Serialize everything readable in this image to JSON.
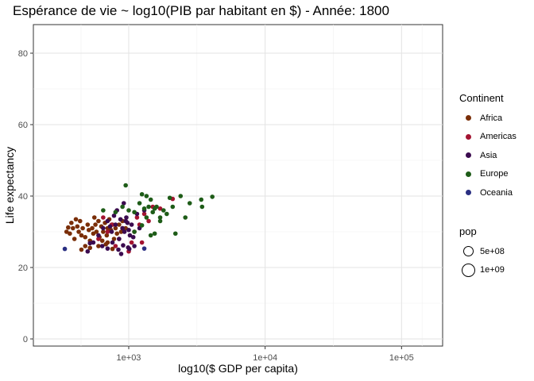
{
  "chart_data": {
    "type": "scatter",
    "title": "Espérance de vie ~ log10(PIB par habitant en $) - Année: 1800",
    "xlabel": "log10($ GDP per capita)",
    "ylabel": "Life expectancy",
    "x_scale": "log10",
    "xlim": [
      200,
      200000
    ],
    "ylim": [
      -2,
      88
    ],
    "x_ticks": [
      {
        "value": 1000,
        "label": "1e+03"
      },
      {
        "value": 10000,
        "label": "1e+04"
      },
      {
        "value": 100000,
        "label": "1e+05"
      }
    ],
    "y_ticks": [
      {
        "value": 0,
        "label": "0"
      },
      {
        "value": 20,
        "label": "20"
      },
      {
        "value": 40,
        "label": "40"
      },
      {
        "value": 60,
        "label": "60"
      },
      {
        "value": 80,
        "label": "80"
      }
    ],
    "grid": true,
    "legend": {
      "placement": "right",
      "color_title": "Continent",
      "size_title": "pop",
      "size_entries": [
        "5e+08",
        "1e+09"
      ]
    },
    "series": [
      {
        "name": "Africa",
        "color": "#7a2e08",
        "points": [
          [
            350,
            30
          ],
          [
            370,
            29.5
          ],
          [
            390,
            31
          ],
          [
            400,
            28
          ],
          [
            420,
            31.5
          ],
          [
            430,
            30
          ],
          [
            440,
            33
          ],
          [
            450,
            29
          ],
          [
            460,
            31
          ],
          [
            480,
            28.5
          ],
          [
            500,
            32
          ],
          [
            510,
            30.5
          ],
          [
            520,
            27.5
          ],
          [
            540,
            31
          ],
          [
            550,
            29.5
          ],
          [
            570,
            32
          ],
          [
            580,
            30
          ],
          [
            600,
            33
          ],
          [
            610,
            28.5
          ],
          [
            630,
            31.5
          ],
          [
            650,
            30
          ],
          [
            670,
            32.5
          ],
          [
            690,
            29
          ],
          [
            700,
            31
          ],
          [
            720,
            33.5
          ],
          [
            740,
            30.5
          ],
          [
            760,
            32
          ],
          [
            780,
            28
          ],
          [
            800,
            31
          ],
          [
            820,
            29.5
          ],
          [
            850,
            32
          ],
          [
            880,
            30
          ],
          [
            450,
            25
          ],
          [
            480,
            26
          ],
          [
            520,
            25.5
          ],
          [
            600,
            26
          ],
          [
            700,
            27
          ],
          [
            760,
            25.2
          ],
          [
            560,
            34
          ],
          [
            640,
            27.5
          ],
          [
            380,
            32.5
          ],
          [
            410,
            33.5
          ],
          [
            360,
            31.2
          ],
          [
            900,
            33
          ],
          [
            950,
            31
          ],
          [
            680,
            26.5
          ]
        ]
      },
      {
        "name": "Americas",
        "color": "#a31431",
        "points": [
          [
            650,
            34
          ],
          [
            700,
            30
          ],
          [
            750,
            32
          ],
          [
            800,
            26
          ],
          [
            850,
            28
          ],
          [
            900,
            31
          ],
          [
            950,
            33
          ],
          [
            1000,
            24.5
          ],
          [
            1050,
            27
          ],
          [
            1100,
            30
          ],
          [
            1150,
            34
          ],
          [
            1200,
            32
          ],
          [
            1300,
            35
          ],
          [
            1400,
            33
          ],
          [
            1500,
            37
          ],
          [
            1700,
            36.5
          ],
          [
            2100,
            39.2
          ],
          [
            600,
            28
          ],
          [
            1250,
            27
          ]
        ]
      },
      {
        "name": "Asia",
        "color": "#3b0b4f",
        "points": [
          [
            500,
            24.5
          ],
          [
            550,
            27
          ],
          [
            600,
            29
          ],
          [
            650,
            31
          ],
          [
            700,
            33
          ],
          [
            750,
            30
          ],
          [
            800,
            32
          ],
          [
            850,
            28
          ],
          [
            900,
            31
          ],
          [
            950,
            33
          ],
          [
            1000,
            30.5
          ],
          [
            1020,
            29
          ],
          [
            1050,
            32
          ],
          [
            1080,
            28.5
          ],
          [
            980,
            32.5
          ],
          [
            930,
            30
          ],
          [
            1100,
            26
          ],
          [
            1150,
            35
          ],
          [
            1200,
            31
          ],
          [
            880,
            23.8
          ],
          [
            920,
            38
          ],
          [
            820,
            36
          ],
          [
            1300,
            36
          ],
          [
            760,
            27
          ],
          [
            840,
            25
          ],
          [
            700,
            25.3
          ],
          [
            640,
            26
          ],
          [
            520,
            26.8
          ],
          [
            960,
            34
          ],
          [
            990,
            25.6
          ],
          [
            1010,
            25.2
          ],
          [
            870,
            33.5
          ],
          [
            780,
            34.5
          ],
          [
            910,
            26.2
          ],
          [
            730,
            31.5
          ]
        ]
      },
      {
        "name": "Europe",
        "color": "#1e5c18",
        "points": [
          [
            650,
            36
          ],
          [
            800,
            35.5
          ],
          [
            900,
            37
          ],
          [
            950,
            43
          ],
          [
            1000,
            36
          ],
          [
            1100,
            35.5
          ],
          [
            1200,
            38
          ],
          [
            1250,
            40.5
          ],
          [
            1300,
            36.5
          ],
          [
            1350,
            34
          ],
          [
            1400,
            37
          ],
          [
            1450,
            39
          ],
          [
            1500,
            35.5
          ],
          [
            1550,
            36.5
          ],
          [
            1600,
            37
          ],
          [
            1700,
            34
          ],
          [
            1800,
            36
          ],
          [
            1900,
            35
          ],
          [
            2000,
            39.5
          ],
          [
            2100,
            37
          ],
          [
            2200,
            29.5
          ],
          [
            2400,
            40
          ],
          [
            2600,
            34
          ],
          [
            2800,
            38
          ],
          [
            3400,
            39
          ],
          [
            3450,
            37
          ],
          [
            4100,
            39.8
          ],
          [
            1450,
            29
          ],
          [
            1550,
            29.5
          ],
          [
            1350,
            40
          ],
          [
            1250,
            31.8
          ],
          [
            1100,
            30
          ],
          [
            1700,
            33
          ]
        ]
      },
      {
        "name": "Oceania",
        "color": "#2a2f82",
        "points": [
          [
            340,
            25.2
          ],
          [
            1300,
            25.3
          ]
        ]
      }
    ]
  }
}
